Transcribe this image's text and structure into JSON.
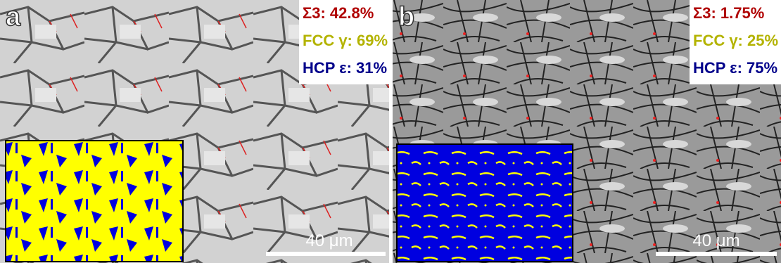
{
  "panels": [
    {
      "label": "a",
      "stats": [
        "Σ3: 42.8%",
        "FCC γ: 69%",
        "HCP ε: 31%"
      ],
      "scale_bar": "40 μm"
    },
    {
      "label": "b",
      "stats": [
        "Σ3: 1.75%",
        "FCC γ: 25%",
        "HCP ε: 75%"
      ],
      "scale_bar": "40 μm"
    }
  ]
}
